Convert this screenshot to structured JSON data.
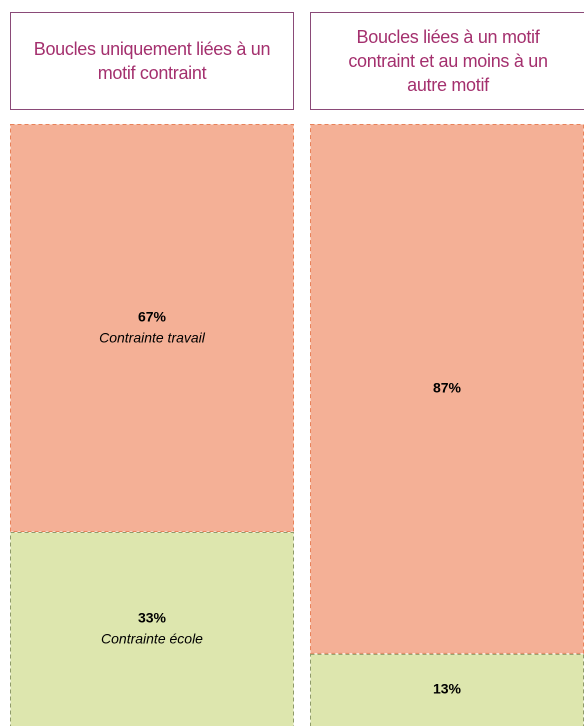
{
  "chart_data": {
    "type": "bar",
    "stacked": true,
    "categories": [
      "Boucles uniquement liées à un motif contraint",
      "Boucles liées à un motif contraint et au moins à un autre motif"
    ],
    "series": [
      {
        "name": "Contrainte travail",
        "color": "#f4b096",
        "border": "#e8825a",
        "values": [
          67,
          87
        ],
        "value_labels": [
          "67%",
          "87%"
        ]
      },
      {
        "name": "Contrainte école",
        "color": "#dde6ae",
        "border": "#8f9a6a",
        "values": [
          33,
          13
        ],
        "value_labels": [
          "33%",
          "13%"
        ]
      }
    ],
    "ylim": [
      0,
      100
    ]
  }
}
